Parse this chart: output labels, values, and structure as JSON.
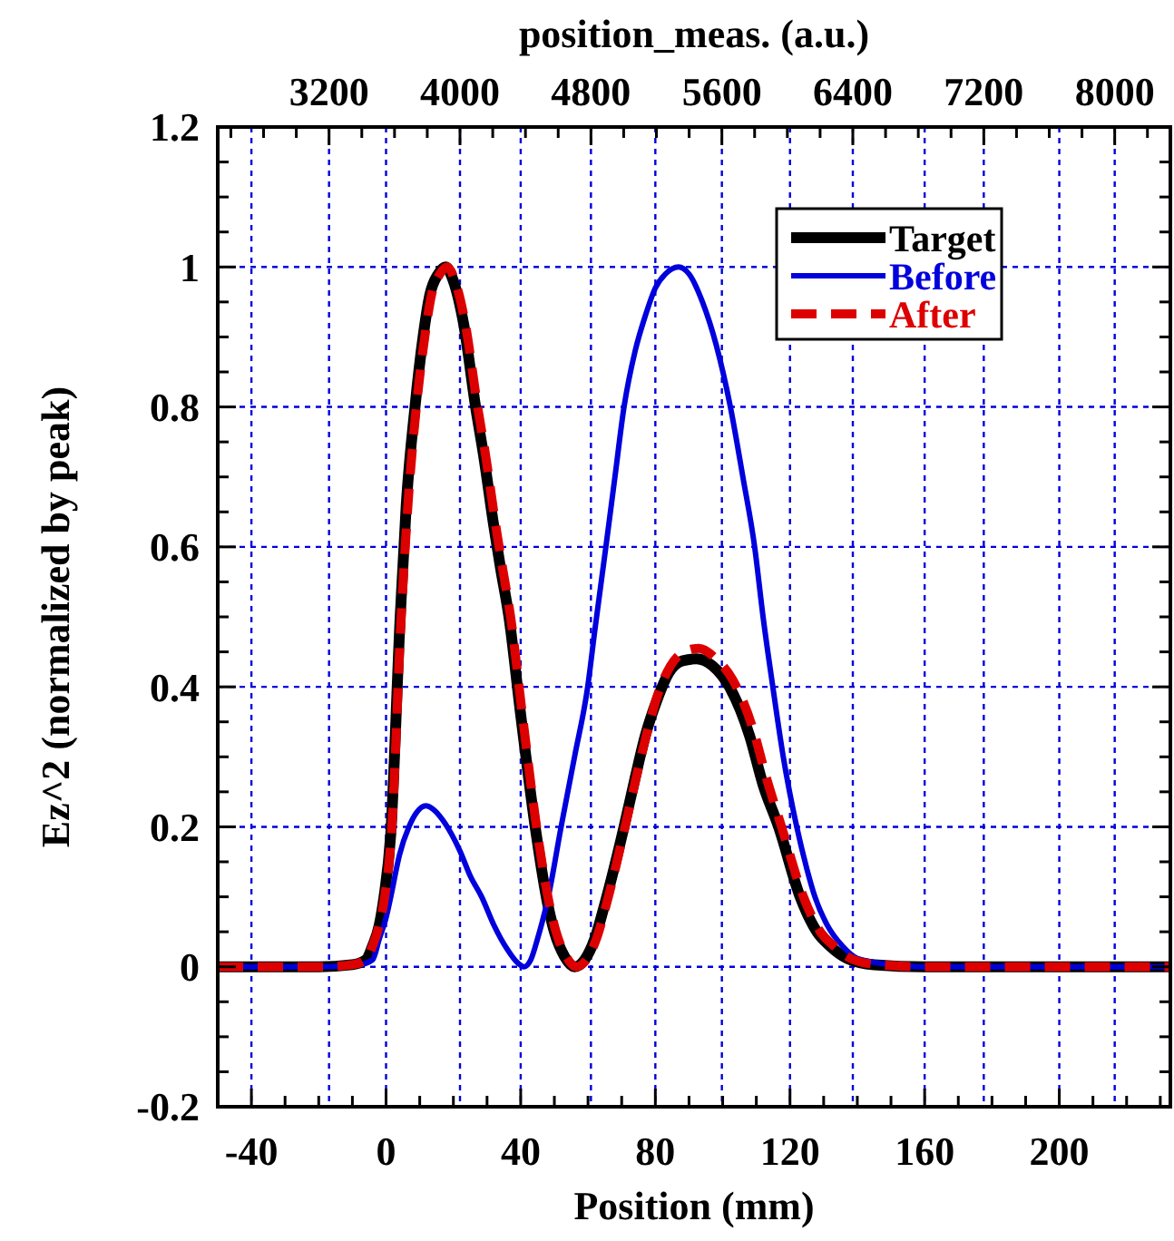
{
  "chart_data": {
    "type": "line",
    "xlabel": "Position (mm)",
    "ylabel": "Ez^2 (normalized by peak)",
    "x2label": "position_meas. (a.u.)",
    "xlim": [
      -50,
      233
    ],
    "ylim": [
      -0.2,
      1.2
    ],
    "x2lim": [
      2520,
      8340
    ],
    "xticks": [
      -40,
      {
        "value": -30,
        "label": null
      },
      {
        "value": -20,
        "label": null
      },
      {
        "value": -10,
        "label": null
      },
      0,
      {
        "value": 10,
        "label": null
      },
      {
        "value": 20,
        "label": null
      },
      {
        "value": 30,
        "label": null
      },
      40,
      {
        "value": 50,
        "label": null
      },
      {
        "value": 60,
        "label": null
      },
      {
        "value": 70,
        "label": null
      },
      80,
      {
        "value": 90,
        "label": null
      },
      {
        "value": 100,
        "label": null
      },
      {
        "value": 110,
        "label": null
      },
      120,
      {
        "value": 130,
        "label": null
      },
      {
        "value": 140,
        "label": null
      },
      {
        "value": 150,
        "label": null
      },
      160,
      {
        "value": 170,
        "label": null
      },
      {
        "value": 180,
        "label": null
      },
      {
        "value": 190,
        "label": null
      },
      200,
      {
        "value": 210,
        "label": null
      },
      {
        "value": 220,
        "label": null
      },
      {
        "value": 230,
        "label": null
      }
    ],
    "x2ticks": [
      {
        "value": 2600,
        "label": null
      },
      {
        "value": 2800,
        "label": null
      },
      {
        "value": 3000,
        "label": null
      },
      3200,
      {
        "value": 3400,
        "label": null
      },
      {
        "value": 3600,
        "label": null
      },
      {
        "value": 3800,
        "label": null
      },
      4000,
      {
        "value": 4200,
        "label": null
      },
      {
        "value": 4400,
        "label": null
      },
      {
        "value": 4600,
        "label": null
      },
      4800,
      {
        "value": 5000,
        "label": null
      },
      {
        "value": 5200,
        "label": null
      },
      {
        "value": 5400,
        "label": null
      },
      5600,
      {
        "value": 5800,
        "label": null
      },
      {
        "value": 6000,
        "label": null
      },
      {
        "value": 6200,
        "label": null
      },
      6400,
      {
        "value": 6600,
        "label": null
      },
      {
        "value": 6800,
        "label": null
      },
      {
        "value": 7000,
        "label": null
      },
      7200,
      {
        "value": 7400,
        "label": null
      },
      {
        "value": 7600,
        "label": null
      },
      {
        "value": 7800,
        "label": null
      },
      8000,
      {
        "value": 8200,
        "label": null
      }
    ],
    "yticks": [
      -0.2,
      {
        "value": -0.15,
        "label": null
      },
      {
        "value": -0.1,
        "label": null
      },
      {
        "value": -0.05,
        "label": null
      },
      0,
      {
        "value": 0.05,
        "label": null
      },
      {
        "value": 0.1,
        "label": null
      },
      {
        "value": 0.15,
        "label": null
      },
      0.2,
      {
        "value": 0.25,
        "label": null
      },
      {
        "value": 0.3,
        "label": null
      },
      {
        "value": 0.35,
        "label": null
      },
      0.4,
      {
        "value": 0.45,
        "label": null
      },
      {
        "value": 0.5,
        "label": null
      },
      {
        "value": 0.55,
        "label": null
      },
      0.6,
      {
        "value": 0.65,
        "label": null
      },
      {
        "value": 0.7,
        "label": null
      },
      {
        "value": 0.75,
        "label": null
      },
      0.8,
      {
        "value": 0.85,
        "label": null
      },
      {
        "value": 0.9,
        "label": null
      },
      {
        "value": 0.95,
        "label": null
      },
      1,
      {
        "value": 1.05,
        "label": null
      },
      {
        "value": 1.1,
        "label": null
      },
      {
        "value": 1.15,
        "label": null
      },
      1.2
    ],
    "grid": true,
    "legend": "top right",
    "series": [
      {
        "name": "Target",
        "color": "#000000",
        "line_style": "solid",
        "x": [
          -50,
          -20,
          -10,
          -6,
          -4,
          -2,
          -0.6,
          1.4,
          4.2,
          6,
          8.6,
          11,
          13,
          15.5,
          17.7,
          20,
          23,
          26.6,
          29,
          32,
          34,
          36.5,
          40,
          44.6,
          48,
          50,
          53,
          56,
          59,
          62,
          65,
          70.7,
          74,
          77,
          80.4,
          84,
          88,
          92.2,
          97,
          102,
          108,
          112,
          116.6,
          123,
          128,
          131.8,
          137,
          145,
          160,
          200,
          233
        ],
        "values": [
          0,
          0,
          0.003,
          0.01,
          0.03,
          0.06,
          0.1,
          0.19,
          0.5,
          0.66,
          0.8,
          0.9,
          0.96,
          0.99,
          1,
          0.98,
          0.92,
          0.8,
          0.73,
          0.63,
          0.57,
          0.5,
          0.36,
          0.19,
          0.09,
          0.05,
          0.015,
          0,
          0.01,
          0.04,
          0.09,
          0.2,
          0.27,
          0.33,
          0.38,
          0.42,
          0.437,
          0.44,
          0.43,
          0.4,
          0.33,
          0.26,
          0.2,
          0.1,
          0.05,
          0.03,
          0.012,
          0.003,
          0,
          0,
          0
        ]
      },
      {
        "name": "Before",
        "color": "#0000dd",
        "line_style": "solid",
        "x": [
          -50,
          -20,
          -8,
          -4,
          -2,
          0,
          1.4,
          4,
          6.8,
          9,
          11.8,
          14,
          16,
          19.4,
          22,
          25,
          28.4,
          32,
          36,
          39,
          41,
          43,
          45,
          48.2,
          52,
          56,
          59.9,
          62,
          65.3,
          68,
          70.7,
          74,
          77,
          80,
          83,
          86.9,
          90,
          94,
          98,
          102.3,
          106,
          109.5,
          112,
          114.9,
          118,
          122,
          125,
          127.4,
          131,
          135.5,
          140,
          150,
          160,
          200,
          233
        ],
        "values": [
          0,
          0,
          0.003,
          0.01,
          0.04,
          0.07,
          0.1,
          0.16,
          0.2,
          0.22,
          0.23,
          0.225,
          0.215,
          0.19,
          0.165,
          0.13,
          0.1,
          0.06,
          0.025,
          0.006,
          0,
          0.01,
          0.04,
          0.1,
          0.2,
          0.3,
          0.4,
          0.48,
          0.6,
          0.7,
          0.8,
          0.88,
          0.93,
          0.97,
          0.99,
          1,
          0.99,
          0.95,
          0.89,
          0.8,
          0.7,
          0.6,
          0.5,
          0.4,
          0.3,
          0.2,
          0.14,
          0.1,
          0.06,
          0.03,
          0.012,
          0.003,
          0,
          0,
          0
        ]
      },
      {
        "name": "After",
        "color": "#dd0000",
        "line_style": "dashed",
        "x": [
          -50,
          -20,
          -10,
          -6,
          -4,
          -2,
          -0.4,
          1.6,
          4.5,
          6.5,
          9,
          11.5,
          13.5,
          16,
          18.2,
          20.5,
          23.5,
          27.2,
          29.6,
          32.6,
          34.6,
          37,
          40.5,
          45,
          48.5,
          50.5,
          53.5,
          56.5,
          59.5,
          62.5,
          65.5,
          71,
          74.3,
          77.3,
          80.8,
          84.5,
          88.5,
          93,
          98,
          103,
          109,
          113,
          117.5,
          124,
          129,
          133,
          138,
          146,
          160,
          200,
          233
        ],
        "values": [
          0,
          0,
          0.003,
          0.01,
          0.03,
          0.06,
          0.1,
          0.19,
          0.5,
          0.66,
          0.8,
          0.9,
          0.96,
          0.99,
          1,
          0.98,
          0.92,
          0.8,
          0.73,
          0.63,
          0.57,
          0.5,
          0.36,
          0.19,
          0.09,
          0.05,
          0.015,
          0,
          0.01,
          0.04,
          0.09,
          0.2,
          0.27,
          0.33,
          0.39,
          0.43,
          0.45,
          0.455,
          0.44,
          0.41,
          0.34,
          0.27,
          0.2,
          0.1,
          0.05,
          0.03,
          0.012,
          0.003,
          0,
          0,
          0
        ]
      }
    ]
  }
}
